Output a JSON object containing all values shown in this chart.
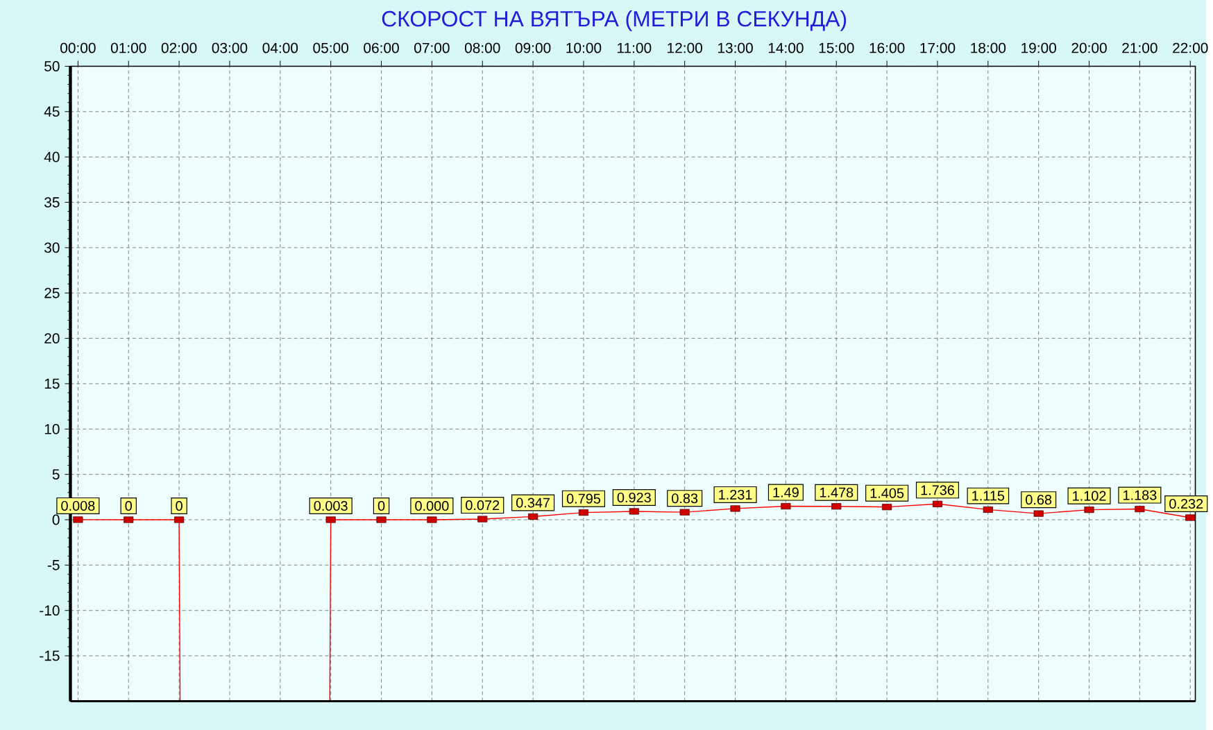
{
  "chart_data": {
    "type": "line",
    "title": "СКОРОСТ НА ВЯТЪРА (МЕТРИ В СЕКУНДА)",
    "x": [
      0,
      1,
      2,
      3,
      4,
      5,
      6,
      7,
      8,
      9,
      10,
      11,
      12,
      13,
      14,
      15,
      16,
      17,
      18,
      19,
      20,
      21,
      22
    ],
    "xlim": [
      -0.15,
      22.1
    ],
    "xticks": [
      {
        "value": 0,
        "label": "00:00"
      },
      {
        "value": 1,
        "label": "01:00"
      },
      {
        "value": 2,
        "label": "02:00"
      },
      {
        "value": 3,
        "label": "03:00"
      },
      {
        "value": 4,
        "label": "04:00"
      },
      {
        "value": 5,
        "label": "05:00"
      },
      {
        "value": 6,
        "label": "06:00"
      },
      {
        "value": 7,
        "label": "07:00"
      },
      {
        "value": 8,
        "label": "08:00"
      },
      {
        "value": 9,
        "label": "09:00"
      },
      {
        "value": 10,
        "label": "10:00"
      },
      {
        "value": 11,
        "label": "11:00"
      },
      {
        "value": 12,
        "label": "12:00"
      },
      {
        "value": 13,
        "label": "13:00"
      },
      {
        "value": 14,
        "label": "14:00"
      },
      {
        "value": 15,
        "label": "15:00"
      },
      {
        "value": 16,
        "label": "16:00"
      },
      {
        "value": 17,
        "label": "17:00"
      },
      {
        "value": 18,
        "label": "18:00"
      },
      {
        "value": 19,
        "label": "19:00"
      },
      {
        "value": 20,
        "label": "20:00"
      },
      {
        "value": 21,
        "label": "21:00"
      },
      {
        "value": 22,
        "label": "22:00"
      }
    ],
    "ylim": [
      -20,
      50
    ],
    "yticks": [
      -15,
      -10,
      -5,
      0,
      5,
      10,
      15,
      20,
      25,
      30,
      35,
      40,
      45,
      50
    ],
    "grid": true,
    "marker": "square",
    "series": [
      {
        "color": "#ff0000",
        "values": [
          0.008,
          0,
          0,
          null,
          null,
          0.003,
          0,
          0.0,
          0.072,
          0.347,
          0.795,
          0.923,
          0.83,
          1.231,
          1.49,
          1.478,
          1.405,
          1.736,
          1.115,
          0.68,
          1.102,
          1.183,
          0.232
        ],
        "value_labels": [
          "0.008",
          "0",
          "0",
          null,
          null,
          "0.003",
          "0",
          "0.000",
          "0.072",
          "0.347",
          "0.795",
          "0.923",
          "0.83",
          "1.231",
          "1.49",
          "1.478",
          "1.405",
          "1.736",
          "1.115",
          "0.68",
          "1.102",
          "1.183",
          "0.232"
        ]
      },
      {
        "type": "line",
        "color": "#ff0000",
        "x": [
          2,
          2.02
        ],
        "values": [
          0,
          -20
        ],
        "marker": "none"
      },
      {
        "type": "line",
        "color": "#ff0000",
        "x": [
          4.98,
          5
        ],
        "values": [
          -20,
          0
        ],
        "marker": "none"
      }
    ]
  }
}
